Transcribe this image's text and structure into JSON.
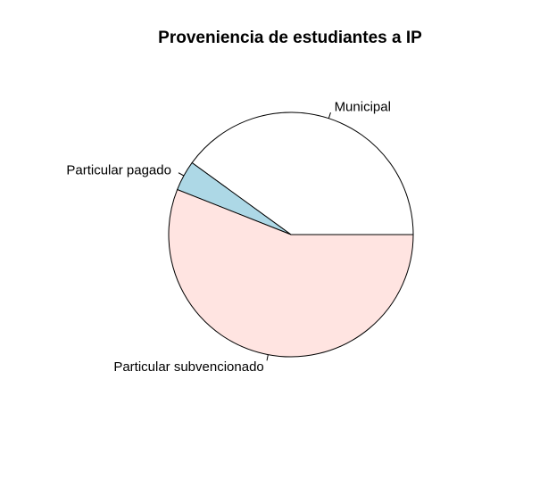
{
  "chart_data": {
    "type": "pie",
    "title": "Proveniencia de estudiantes a IP",
    "slices": [
      {
        "label": "Municipal",
        "value": 40,
        "color": "#ffffff"
      },
      {
        "label": "Particular pagado",
        "value": 4,
        "color": "#add8e6"
      },
      {
        "label": "Particular subvencionado",
        "value": 56,
        "color": "#ffe4e1"
      }
    ],
    "start_angle_deg": 0,
    "direction": "counterclockwise"
  }
}
